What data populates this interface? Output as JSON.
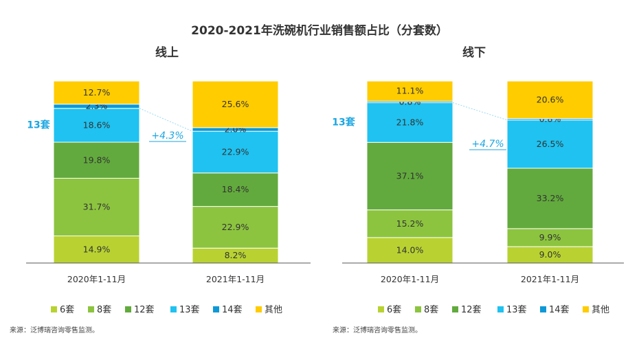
{
  "title": "2020-2021年洗碗机行业销售额占比（分套数）",
  "colors": {
    "6套": "#b9d232",
    "8套": "#8cc43f",
    "12套": "#62aa3d",
    "13套": "#1fc2f0",
    "14套": "#0e99d6",
    "其他": "#ffcc00",
    "axis": "#555555",
    "text": "#333333",
    "accent": "#1ba6e2"
  },
  "chart_data": [
    {
      "type": "bar",
      "stacked": true,
      "title": "线上",
      "categories": [
        "2020年1-11月",
        "2021年1-11月"
      ],
      "series": [
        {
          "name": "6套",
          "values": [
            14.9,
            8.2
          ]
        },
        {
          "name": "8套",
          "values": [
            31.7,
            22.9
          ]
        },
        {
          "name": "12套",
          "values": [
            19.8,
            18.4
          ]
        },
        {
          "name": "13套",
          "values": [
            18.6,
            22.9
          ]
        },
        {
          "name": "14套",
          "values": [
            2.3,
            2.0
          ]
        },
        {
          "name": "其他",
          "values": [
            12.7,
            25.6
          ]
        }
      ],
      "value_labels": [
        [
          "14.9%",
          "31.7%",
          "19.8%",
          "18.6%",
          "2.3%",
          "12.7%"
        ],
        [
          "8.2%",
          "22.9%",
          "18.4%",
          "22.9%",
          "2.0%",
          "25.6%"
        ]
      ],
      "highlight_label": "13套",
      "change_label": "+4.3%",
      "ylim": [
        0,
        100
      ]
    },
    {
      "type": "bar",
      "stacked": true,
      "title": "线下",
      "categories": [
        "2020年1-11月",
        "2021年1-11月"
      ],
      "series": [
        {
          "name": "6套",
          "values": [
            14.0,
            9.0
          ]
        },
        {
          "name": "8套",
          "values": [
            15.2,
            9.9
          ]
        },
        {
          "name": "12套",
          "values": [
            37.1,
            33.2
          ]
        },
        {
          "name": "13套",
          "values": [
            21.8,
            26.5
          ]
        },
        {
          "name": "14套",
          "values": [
            0.8,
            0.8
          ]
        },
        {
          "name": "其他",
          "values": [
            11.1,
            20.6
          ]
        }
      ],
      "value_labels": [
        [
          "14.0%",
          "15.2%",
          "37.1%",
          "21.8%",
          "0.8%",
          "11.1%"
        ],
        [
          "9.0%",
          "9.9%",
          "33.2%",
          "26.5%",
          "0.8%",
          "20.6%"
        ]
      ],
      "highlight_label": "13套",
      "change_label": "+4.7%",
      "ylim": [
        0,
        100
      ]
    }
  ],
  "legend": [
    "6套",
    "8套",
    "12套",
    "13套",
    "14套",
    "其他"
  ],
  "source_left": "来源：泛博瑞咨询零售监测。",
  "source_right": "来源：泛博瑞咨询零售监测。"
}
